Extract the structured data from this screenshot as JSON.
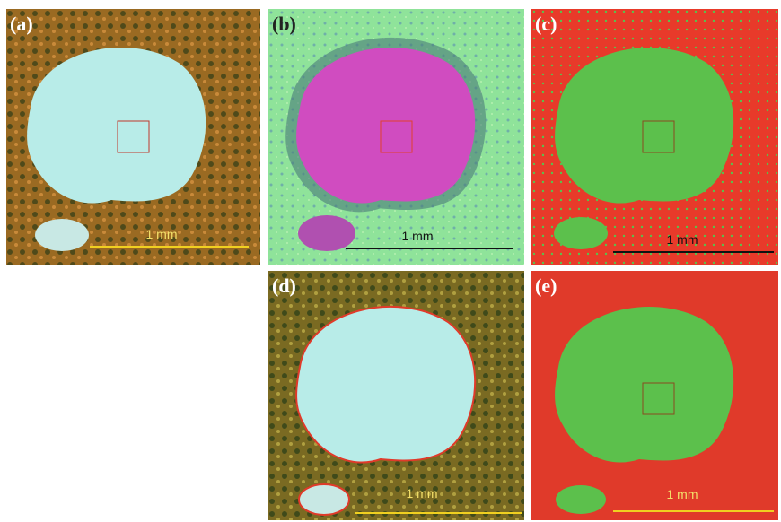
{
  "panels": [
    {
      "label": "(a)",
      "scale": "1 mm"
    },
    {
      "label": "(b)",
      "scale": "1 mm"
    },
    {
      "label": "(c)",
      "scale": "1 mm"
    },
    {
      "label": "(d)",
      "scale": "1 mm"
    },
    {
      "label": "(e)",
      "scale": "1 mm"
    }
  ]
}
